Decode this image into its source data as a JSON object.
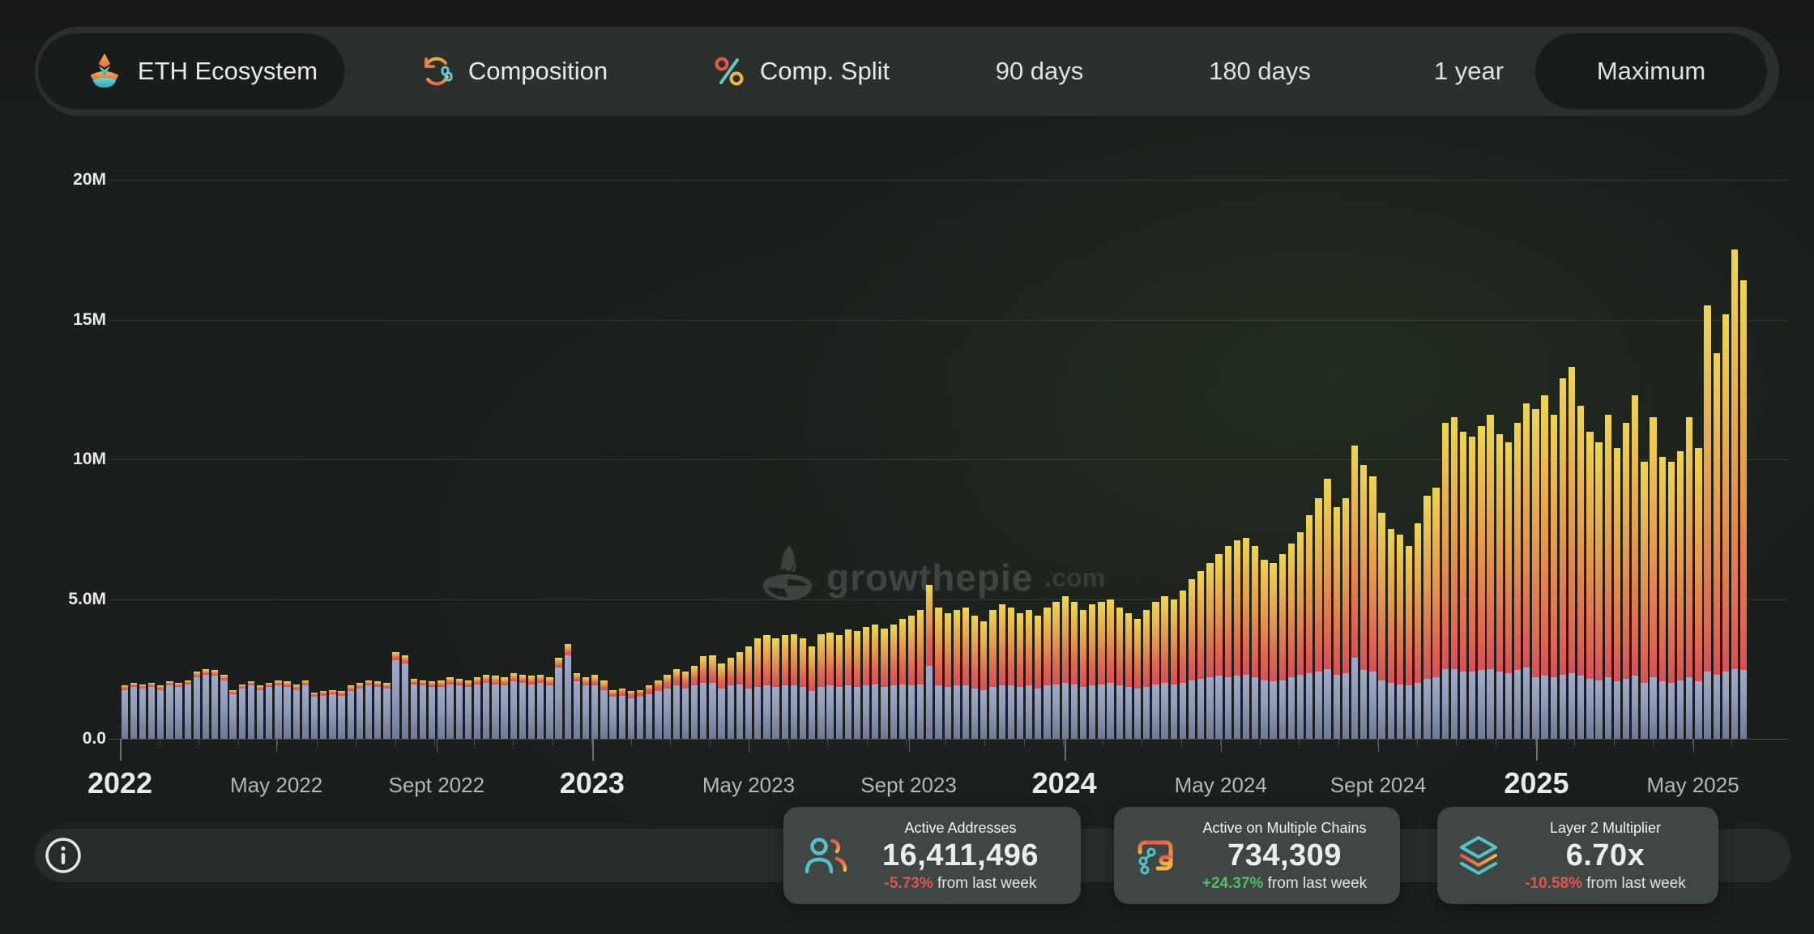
{
  "toolbar": {
    "tabs": [
      {
        "label": "ETH Ecosystem",
        "selected": true
      },
      {
        "label": "Composition",
        "selected": false
      },
      {
        "label": "Comp. Split",
        "selected": false
      }
    ],
    "ranges": [
      {
        "label": "90 days",
        "selected": false
      },
      {
        "label": "180 days",
        "selected": false
      },
      {
        "label": "1 year",
        "selected": false
      },
      {
        "label": "Maximum",
        "selected": true
      }
    ]
  },
  "watermark": {
    "brand": "growthepie",
    "tld": ".com"
  },
  "chart_data": {
    "type": "bar",
    "stacked": true,
    "unit_millions": true,
    "ylim": [
      0,
      20000000
    ],
    "y_ticks": [
      {
        "label": "0.0",
        "value": 0
      },
      {
        "label": "5.0M",
        "value": 5
      },
      {
        "label": "10M",
        "value": 10
      },
      {
        "label": "15M",
        "value": 15
      },
      {
        "label": "20M",
        "value": 20
      }
    ],
    "x_ticks": [
      {
        "label": "2022",
        "week": 0,
        "major": true
      },
      {
        "label": "May 2022",
        "week": 17.3,
        "major": false
      },
      {
        "label": "Sept 2022",
        "week": 35.0,
        "major": false
      },
      {
        "label": "2023",
        "week": 52.2,
        "major": true
      },
      {
        "label": "May 2023",
        "week": 69.5,
        "major": false
      },
      {
        "label": "Sept 2023",
        "week": 87.2,
        "major": false
      },
      {
        "label": "2024",
        "week": 104.4,
        "major": true
      },
      {
        "label": "May 2024",
        "week": 121.7,
        "major": false
      },
      {
        "label": "Sept 2024",
        "week": 139.1,
        "major": false
      },
      {
        "label": "2025",
        "week": 156.6,
        "major": true
      },
      {
        "label": "May 2025",
        "week": 173.9,
        "major": false
      }
    ],
    "weeks": 180,
    "series": {
      "totals_m": [
        1.9,
        2.0,
        1.95,
        2.0,
        1.9,
        2.05,
        2.0,
        2.1,
        2.4,
        2.5,
        2.45,
        2.3,
        1.75,
        1.95,
        2.05,
        1.9,
        2.0,
        2.1,
        2.05,
        1.95,
        2.1,
        1.65,
        1.7,
        1.75,
        1.7,
        1.9,
        2.0,
        2.1,
        2.05,
        2.0,
        3.1,
        3.0,
        2.15,
        2.1,
        2.05,
        2.1,
        2.2,
        2.15,
        2.1,
        2.2,
        2.3,
        2.25,
        2.2,
        2.35,
        2.3,
        2.25,
        2.3,
        2.2,
        2.9,
        3.4,
        2.35,
        2.2,
        2.3,
        2.1,
        1.75,
        1.8,
        1.7,
        1.75,
        1.9,
        2.1,
        2.3,
        2.5,
        2.4,
        2.6,
        2.95,
        3.0,
        2.7,
        2.9,
        3.1,
        3.3,
        3.6,
        3.7,
        3.6,
        3.7,
        3.75,
        3.6,
        3.3,
        3.75,
        3.8,
        3.7,
        3.9,
        3.85,
        4.0,
        4.1,
        3.95,
        4.1,
        4.3,
        4.4,
        4.6,
        5.5,
        4.7,
        4.5,
        4.6,
        4.7,
        4.4,
        4.2,
        4.6,
        4.8,
        4.7,
        4.5,
        4.6,
        4.4,
        4.7,
        4.9,
        5.1,
        4.9,
        4.6,
        4.8,
        4.9,
        5.0,
        4.7,
        4.5,
        4.3,
        4.6,
        4.9,
        5.1,
        5.0,
        5.3,
        5.7,
        6.0,
        6.3,
        6.6,
        6.9,
        7.1,
        7.2,
        6.9,
        6.4,
        6.3,
        6.6,
        7.0,
        7.4,
        8.0,
        8.6,
        9.3,
        8.3,
        8.6,
        10.5,
        9.8,
        9.4,
        8.1,
        7.5,
        7.3,
        6.9,
        7.7,
        8.7,
        9.0,
        11.3,
        11.5,
        11.0,
        10.8,
        11.2,
        11.6,
        10.9,
        10.6,
        11.3,
        12.0,
        11.8,
        12.3,
        11.6,
        12.9,
        13.3,
        11.9,
        11.0,
        10.6,
        11.6,
        10.4,
        11.3,
        12.3,
        9.9,
        11.5,
        10.1,
        9.9,
        10.3,
        11.5,
        10.4,
        15.5,
        13.8,
        15.2,
        17.5,
        16.4
      ],
      "blue_m": [
        1.75,
        1.85,
        1.8,
        1.85,
        1.75,
        1.9,
        1.85,
        1.95,
        2.2,
        2.3,
        2.25,
        2.1,
        1.6,
        1.8,
        1.9,
        1.75,
        1.85,
        1.9,
        1.85,
        1.75,
        1.9,
        1.5,
        1.55,
        1.6,
        1.55,
        1.7,
        1.8,
        1.9,
        1.85,
        1.8,
        2.8,
        2.7,
        1.95,
        1.9,
        1.85,
        1.85,
        1.95,
        1.9,
        1.85,
        1.95,
        2.0,
        1.95,
        1.9,
        2.05,
        2.0,
        1.95,
        2.0,
        1.9,
        2.55,
        3.0,
        2.05,
        1.9,
        1.9,
        1.75,
        1.5,
        1.55,
        1.45,
        1.5,
        1.6,
        1.7,
        1.8,
        1.9,
        1.8,
        1.9,
        2.0,
        2.0,
        1.8,
        1.9,
        1.95,
        1.8,
        1.85,
        1.9,
        1.85,
        1.9,
        1.9,
        1.85,
        1.7,
        1.85,
        1.9,
        1.85,
        1.9,
        1.85,
        1.9,
        1.95,
        1.85,
        1.9,
        1.95,
        1.9,
        1.95,
        2.6,
        1.9,
        1.85,
        1.9,
        1.9,
        1.8,
        1.75,
        1.85,
        1.9,
        1.9,
        1.85,
        1.9,
        1.8,
        1.9,
        1.95,
        2.0,
        1.95,
        1.85,
        1.9,
        1.95,
        2.0,
        1.9,
        1.85,
        1.8,
        1.85,
        1.95,
        2.0,
        1.95,
        2.0,
        2.1,
        2.15,
        2.2,
        2.25,
        2.2,
        2.25,
        2.3,
        2.2,
        2.1,
        2.05,
        2.1,
        2.2,
        2.3,
        2.35,
        2.4,
        2.5,
        2.3,
        2.35,
        2.9,
        2.45,
        2.4,
        2.1,
        2.0,
        1.95,
        1.9,
        2.0,
        2.15,
        2.2,
        2.5,
        2.5,
        2.4,
        2.4,
        2.45,
        2.5,
        2.4,
        2.35,
        2.45,
        2.55,
        2.2,
        2.25,
        2.2,
        2.3,
        2.35,
        2.25,
        2.15,
        2.1,
        2.2,
        2.05,
        2.15,
        2.25,
        2.0,
        2.2,
        2.05,
        2.0,
        2.1,
        2.2,
        2.05,
        2.4,
        2.3,
        2.4,
        2.5,
        2.45
      ],
      "red_m": [
        0.06,
        0.06,
        0.06,
        0.06,
        0.06,
        0.06,
        0.06,
        0.06,
        0.06,
        0.06,
        0.06,
        0.06,
        0.06,
        0.06,
        0.06,
        0.06,
        0.06,
        0.07,
        0.07,
        0.07,
        0.07,
        0.07,
        0.07,
        0.07,
        0.07,
        0.07,
        0.07,
        0.07,
        0.07,
        0.07,
        0.1,
        0.1,
        0.07,
        0.07,
        0.07,
        0.08,
        0.08,
        0.08,
        0.08,
        0.08,
        0.08,
        0.08,
        0.08,
        0.08,
        0.08,
        0.08,
        0.08,
        0.08,
        0.1,
        0.12,
        0.08,
        0.08,
        0.1,
        0.1,
        0.1,
        0.12,
        0.12,
        0.15,
        0.15,
        0.18,
        0.2,
        0.2,
        0.22,
        0.25,
        0.3,
        0.3,
        0.28,
        0.3,
        0.3,
        0.35,
        0.4,
        0.4,
        0.4,
        0.42,
        0.45,
        0.42,
        0.4,
        0.45,
        0.48,
        0.45,
        0.5,
        0.5,
        0.52,
        0.55,
        0.5,
        0.55,
        0.6,
        0.6,
        0.62,
        0.8,
        0.65,
        0.6,
        0.62,
        0.65,
        0.6,
        0.55,
        0.62,
        0.65,
        0.65,
        0.6,
        0.62,
        0.6,
        0.65,
        0.68,
        0.7,
        0.68,
        0.62,
        0.65,
        0.68,
        0.7,
        0.65,
        0.6,
        0.58,
        0.62,
        0.68,
        0.7,
        0.68,
        0.72,
        0.78,
        0.8,
        0.85,
        0.88,
        0.9,
        0.92,
        0.95,
        0.9,
        0.85,
        0.82,
        0.85,
        0.9,
        0.95,
        1.0,
        1.05,
        1.15,
        1.0,
        1.05,
        1.3,
        1.15,
        1.1,
        1.0,
        0.95,
        0.9,
        0.85,
        0.95,
        1.05,
        1.1,
        1.3,
        1.3,
        1.25,
        1.2,
        1.25,
        1.3,
        1.25,
        1.2,
        1.28,
        1.35,
        1.25,
        1.3,
        1.25,
        1.35,
        1.4,
        1.3,
        1.2,
        1.15,
        1.25,
        1.1,
        1.2,
        1.3,
        1.05,
        1.2,
        1.1,
        1.05,
        1.1,
        1.2,
        1.1,
        1.5,
        1.4,
        1.5,
        1.6,
        1.55
      ]
    },
    "colors": {
      "yellow_top": "#efd54f",
      "orange_mid": "#e59a4c",
      "red_low": "#d84f57",
      "blue_light": "#a0aac8",
      "blue_dark": "#6f7994"
    }
  },
  "cards": [
    {
      "title": "Active Addresses",
      "value": "16,411,496",
      "delta": "-5.73%",
      "direction": "down",
      "suffix": " from last week"
    },
    {
      "title": "Active on Multiple Chains",
      "value": "734,309",
      "delta": "+24.37%",
      "direction": "up",
      "suffix": " from last week"
    },
    {
      "title": "Layer 2 Multiplier",
      "value": "6.70x",
      "delta": "-10.58%",
      "direction": "down",
      "suffix": " from last week"
    }
  ]
}
